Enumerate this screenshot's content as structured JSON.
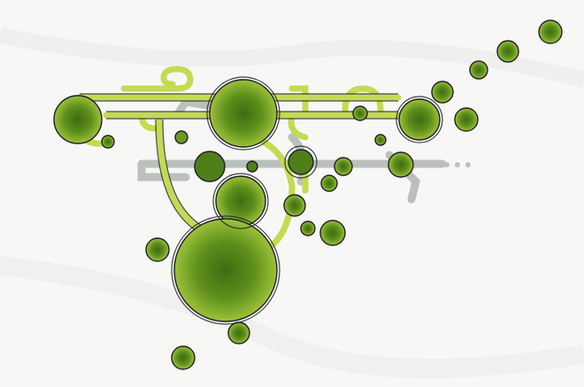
{
  "artwork": {
    "palette": {
      "background": "#f7f8f6",
      "fill_light": "#c3db52",
      "fill_dark": "#5e8f1b",
      "core": "#3f6b12",
      "ink": "#1f1f2a",
      "ghost": "#8c948f"
    }
  }
}
